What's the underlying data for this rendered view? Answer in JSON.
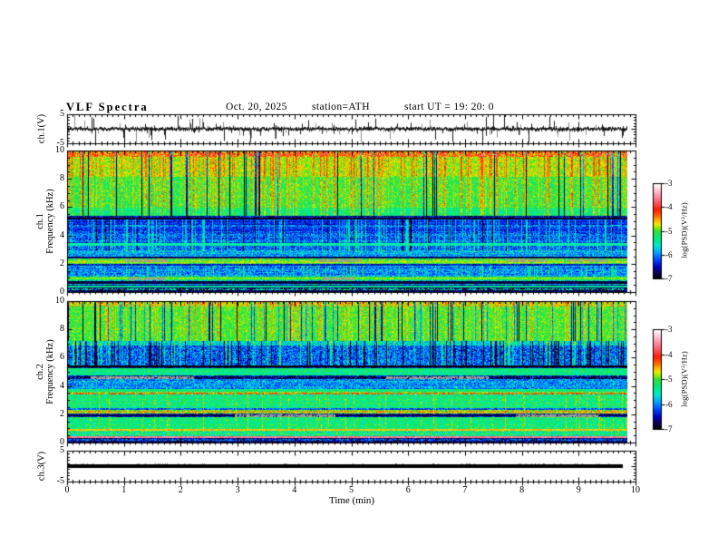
{
  "header": {
    "title": "VLF Spectra",
    "date": "Oct. 20, 2025",
    "station": "station=ATH",
    "start_ut": "start UT =  19: 20: 0"
  },
  "x_axis": {
    "label": "Time (min)",
    "range": [
      0,
      10
    ],
    "major_ticks": [
      0,
      1,
      2,
      3,
      4,
      5,
      6,
      7,
      8,
      9,
      10
    ],
    "minor_step": 0.1
  },
  "colorbars": [
    {
      "label": "log(PSD)(V²/Hz)",
      "ticks": [
        -3,
        -4,
        -5,
        -6,
        -7
      ],
      "top_value": -3,
      "bottom_value": -7
    },
    {
      "label": "log(PSD)(V²/Hz)",
      "ticks": [
        -3,
        -4,
        -5,
        -6,
        -7
      ],
      "top_value": -3,
      "bottom_value": -7
    }
  ],
  "colormap": {
    "stops": [
      [
        -7.0,
        0,
        0,
        0
      ],
      [
        -6.75,
        15,
        0,
        80
      ],
      [
        -6.5,
        0,
        0,
        190
      ],
      [
        -6.2,
        0,
        70,
        255
      ],
      [
        -5.9,
        0,
        165,
        255
      ],
      [
        -5.6,
        0,
        235,
        205
      ],
      [
        -5.3,
        0,
        235,
        125
      ],
      [
        -5.0,
        45,
        225,
        60
      ],
      [
        -4.85,
        150,
        235,
        0
      ],
      [
        -4.7,
        235,
        235,
        0
      ],
      [
        -4.55,
        255,
        180,
        0
      ],
      [
        -4.35,
        255,
        100,
        0
      ],
      [
        -4.1,
        255,
        30,
        0
      ],
      [
        -3.8,
        255,
        85,
        105
      ],
      [
        -3.5,
        255,
        150,
        170
      ],
      [
        -3.2,
        255,
        215,
        225
      ],
      [
        -3.0,
        255,
        255,
        255
      ]
    ],
    "missing_data_gray": "#9e9e8e"
  },
  "chart_data": [
    {
      "id": "ch1-waveform",
      "type": "line",
      "ylabel": "ch.1(V)",
      "ylim": [
        -5,
        5
      ],
      "ytick_labels": [
        5,
        -5
      ],
      "t_end": 9.87,
      "signal": {
        "kind": "noise",
        "center": -0.05,
        "band_halfwidth": 0.65,
        "up_spike_prob": 0.08,
        "down_spike_prob": 0.12,
        "spike_amp_max": 4.6,
        "color": "#1a1a1a",
        "gray_spike_color": "#8f8f8f",
        "seed": 4242
      }
    },
    {
      "id": "ch1-spectrogram",
      "type": "heatmap",
      "ylabel_lines": [
        "ch.1",
        "Frequency  (kHz)"
      ],
      "ylim": [
        0,
        10
      ],
      "ytick_labels": [
        10,
        8,
        6,
        4,
        2,
        0
      ],
      "t_end": 9.87,
      "seed": 1337,
      "bands": [
        {
          "f": [
            9.62,
            10.0
          ],
          "level": -4.42,
          "noise": 0.5
        },
        {
          "f": [
            8.2,
            9.62
          ],
          "level": -4.82,
          "noise": 0.27
        },
        {
          "f": [
            6.0,
            8.2
          ],
          "level": -5.05,
          "noise": 0.3
        },
        {
          "f": [
            5.45,
            6.0
          ],
          "level": -5.3,
          "noise": 0.35
        },
        {
          "f": [
            5.28,
            5.45
          ],
          "level": -6.5,
          "noise": 0.5
        },
        {
          "f": [
            4.35,
            5.28
          ],
          "level": -6.35,
          "noise": 0.3
        },
        {
          "f": [
            2.95,
            4.35
          ],
          "level": -6.12,
          "noise": 0.45
        },
        {
          "f": [
            2.5,
            2.95
          ],
          "level": -5.8,
          "noise": 0.45
        },
        {
          "f": [
            2.0,
            2.5
          ],
          "level": -5.0,
          "noise": 0.35
        },
        {
          "f": [
            1.82,
            2.0
          ],
          "level": -6.4,
          "noise": 0.4
        },
        {
          "f": [
            1.05,
            1.82
          ],
          "level": -6.0,
          "noise": 0.45
        },
        {
          "f": [
            0.82,
            1.05
          ],
          "level": -5.05,
          "noise": 0.25
        },
        {
          "f": [
            0.5,
            0.82
          ],
          "level": -5.6,
          "noise": 0.6
        },
        {
          "f": [
            0.32,
            0.5
          ],
          "level": -6.55,
          "noise": 0.4
        },
        {
          "f": [
            0.0,
            0.32
          ],
          "level": -6.8,
          "noise": 0.45
        }
      ],
      "hlines": [
        {
          "f": 5.2,
          "level": -6.9
        },
        {
          "f": 4.72,
          "level": -5.75,
          "dash": true
        },
        {
          "f": 3.38,
          "level": -5.45
        },
        {
          "f": 2.42,
          "level": -6.7
        },
        {
          "f": 2.1,
          "level": -4.7,
          "dash": true
        },
        {
          "f": 0.95,
          "level": -4.9
        },
        {
          "f": 0.65,
          "level": -6.8
        },
        {
          "f": 0.38,
          "level": -5.35
        },
        {
          "f": 0.14,
          "level": -5.5,
          "dash": true
        }
      ],
      "vstreaks": [
        {
          "f": [
            5.4,
            10.0
          ],
          "dark_prob": 0.05,
          "dark_amp": -1.7,
          "bright_prob": 0.3,
          "bright_amp": 0.42
        },
        {
          "f": [
            2.9,
            5.3
          ],
          "dark_prob": 0.03,
          "dark_amp": -0.7,
          "bright_prob": 0.2,
          "bright_amp": 0.55
        },
        {
          "f": [
            1.05,
            1.82
          ],
          "dark_prob": 0.0,
          "dark_amp": 0,
          "bright_prob": 0.15,
          "bright_amp": 0.5
        }
      ],
      "dropouts": [
        {
          "f": [
            2.12,
            2.3
          ],
          "t": [
            1.0,
            1.75
          ]
        },
        {
          "f": [
            2.12,
            2.3
          ],
          "t": [
            4.4,
            5.15
          ]
        },
        {
          "f": [
            2.12,
            2.3
          ],
          "t": [
            7.75,
            8.45
          ]
        },
        {
          "f": [
            2.12,
            2.3
          ],
          "t": [
            8.8,
            9.5
          ]
        },
        {
          "f": [
            0.86,
            1.0
          ],
          "t": [
            1.05,
            1.7
          ]
        },
        {
          "f": [
            0.86,
            1.0
          ],
          "t": [
            4.5,
            5.05
          ]
        }
      ]
    },
    {
      "id": "ch2-spectrogram",
      "type": "heatmap",
      "ylabel_lines": [
        "ch.2",
        "Frequency  (kHz)"
      ],
      "ylim": [
        0,
        10
      ],
      "ytick_labels": [
        10,
        8,
        6,
        4,
        2,
        0
      ],
      "t_end": 9.87,
      "seed": 7331,
      "bands": [
        {
          "f": [
            9.7,
            10.0
          ],
          "level": -4.72,
          "noise": 0.35
        },
        {
          "f": [
            7.25,
            9.7
          ],
          "level": -5.0,
          "noise": 0.25
        },
        {
          "f": [
            6.9,
            7.25
          ],
          "level": -5.6,
          "noise": 0.45
        },
        {
          "f": [
            5.5,
            6.9
          ],
          "level": -6.1,
          "noise": 0.5
        },
        {
          "f": [
            5.3,
            5.5
          ],
          "level": -6.7,
          "noise": 0.5
        },
        {
          "f": [
            4.75,
            5.3
          ],
          "level": -5.35,
          "noise": 0.35
        },
        {
          "f": [
            4.52,
            4.75
          ],
          "level": -6.5,
          "noise": 0.55
        },
        {
          "f": [
            3.8,
            4.52
          ],
          "level": -5.9,
          "noise": 0.45
        },
        {
          "f": [
            3.58,
            3.8
          ],
          "level": -5.25,
          "noise": 0.3
        },
        {
          "f": [
            3.4,
            3.58
          ],
          "level": -4.85,
          "noise": 0.4
        },
        {
          "f": [
            2.45,
            3.4
          ],
          "level": -5.3,
          "noise": 0.35
        },
        {
          "f": [
            2.28,
            2.45
          ],
          "level": -6.2,
          "noise": 0.4
        },
        {
          "f": [
            2.02,
            2.28
          ],
          "level": -4.8,
          "noise": 0.25
        },
        {
          "f": [
            1.78,
            2.02
          ],
          "level": -6.5,
          "noise": 0.4
        },
        {
          "f": [
            0.95,
            1.78
          ],
          "level": -5.25,
          "noise": 0.35
        },
        {
          "f": [
            0.78,
            0.95
          ],
          "level": -4.7,
          "noise": 0.2
        },
        {
          "f": [
            0.42,
            0.78
          ],
          "level": -5.35,
          "noise": 0.5
        },
        {
          "f": [
            0.3,
            0.42
          ],
          "level": -3.6,
          "noise": 0.25
        },
        {
          "f": [
            0.0,
            0.3
          ],
          "level": -6.7,
          "noise": 0.5
        }
      ],
      "hlines": [
        {
          "f": 5.4,
          "level": -7.0
        },
        {
          "f": 4.62,
          "level": -6.9,
          "dash": true
        },
        {
          "f": 3.5,
          "level": -4.15,
          "dash": true
        },
        {
          "f": 2.15,
          "level": -4.4,
          "dash": true
        },
        {
          "f": 1.9,
          "level": -6.8
        },
        {
          "f": 0.88,
          "level": -4.6
        },
        {
          "f": 0.15,
          "level": -6.0,
          "dash": true
        }
      ],
      "vstreaks": [
        {
          "f": [
            7.25,
            10.0
          ],
          "dark_prob": 0.13,
          "dark_amp": -1.35,
          "bright_prob": 0.15,
          "bright_amp": 0.35
        },
        {
          "f": [
            5.5,
            7.25
          ],
          "dark_prob": 0.16,
          "dark_amp": -0.85,
          "bright_prob": 0.12,
          "bright_amp": 0.55
        },
        {
          "f": [
            0.95,
            3.4
          ],
          "dark_prob": 0.0,
          "dark_amp": 0,
          "bright_prob": 0.1,
          "bright_amp": 0.35
        }
      ],
      "dropouts": [
        {
          "f": [
            1.8,
            1.98
          ],
          "t": [
            2.95,
            4.7
          ]
        },
        {
          "f": [
            1.8,
            1.98
          ],
          "t": [
            7.9,
            9.35
          ]
        },
        {
          "f": [
            4.54,
            4.7
          ],
          "t": [
            0.4,
            2.2
          ]
        },
        {
          "f": [
            4.54,
            4.7
          ],
          "t": [
            5.6,
            7.4
          ]
        }
      ]
    },
    {
      "id": "ch3-waveform",
      "type": "line",
      "ylabel": "ch.3(V)",
      "ylim": [
        -5,
        5
      ],
      "ytick_labels": [
        5,
        -5
      ],
      "t_end": 9.78,
      "signal": {
        "kind": "flat",
        "value": 0,
        "thickness_px": 4,
        "color": "#000000",
        "seed": 77
      }
    }
  ]
}
